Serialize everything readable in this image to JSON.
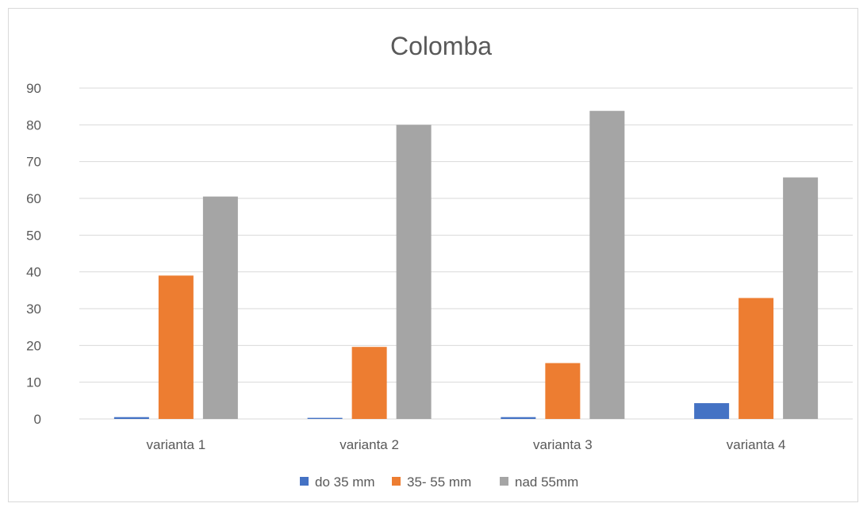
{
  "chart_data": {
    "type": "bar",
    "title": "Colomba",
    "xlabel": "",
    "ylabel": "",
    "categories": [
      "varianta 1",
      "varianta 2",
      "varianta 3",
      "varianta 4"
    ],
    "series": [
      {
        "name": "do 35 mm",
        "color": "#4472c4",
        "values": [
          0.5,
          0.3,
          0.5,
          4.3
        ]
      },
      {
        "name": "35- 55 mm",
        "color": "#ed7d31",
        "values": [
          39,
          19.6,
          15.2,
          32.9
        ]
      },
      {
        "name": "nad 55mm",
        "color": "#a5a5a5",
        "values": [
          60.5,
          80,
          83.8,
          65.7
        ]
      }
    ],
    "ylim": [
      0,
      90
    ],
    "yticks": [
      0,
      10,
      20,
      30,
      40,
      50,
      60,
      70,
      80,
      90
    ],
    "grid": true,
    "legend_position": "bottom"
  }
}
